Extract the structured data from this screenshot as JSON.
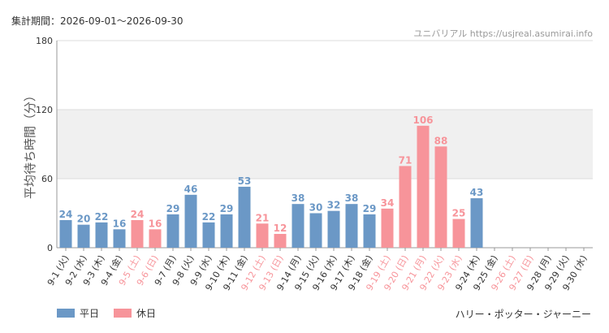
{
  "header": {
    "period": "集計期間：2026-09-01～2026-09-30",
    "site": "ユニバリアル  https://usjreal.asumirai.info"
  },
  "legend": {
    "weekday_label": "平日",
    "holiday_label": "休日",
    "weekday_color": "#6b98c6",
    "holiday_color": "#f7949a"
  },
  "attraction": "ハリー・ポッター・ジャーニー",
  "chart_data": {
    "type": "bar",
    "ylabel": "平均待ち時間（分）",
    "ylim": [
      0,
      180
    ],
    "yticks": [
      0,
      60,
      120,
      180
    ],
    "categories": [
      "9-1 (火)",
      "9-2 (水)",
      "9-3 (木)",
      "9-4 (金)",
      "9-5 (土)",
      "9-6 (日)",
      "9-7 (月)",
      "9-8 (火)",
      "9-9 (水)",
      "9-10 (木)",
      "9-11 (金)",
      "9-12 (土)",
      "9-13 (日)",
      "9-14 (月)",
      "9-15 (火)",
      "9-16 (水)",
      "9-17 (木)",
      "9-18 (金)",
      "9-19 (土)",
      "9-20 (日)",
      "9-21 (月)",
      "9-22 (火)",
      "9-23 (水)",
      "9-24 (木)",
      "9-25 (金)",
      "9-26 (土)",
      "9-27 (日)",
      "9-28 (月)",
      "9-29 (火)",
      "9-30 (水)"
    ],
    "values": [
      24,
      20,
      22,
      16,
      24,
      16,
      29,
      46,
      22,
      29,
      53,
      21,
      12,
      38,
      30,
      32,
      38,
      29,
      34,
      71,
      106,
      88,
      25,
      43,
      null,
      null,
      null,
      null,
      null,
      null
    ],
    "holiday": [
      false,
      false,
      false,
      false,
      true,
      true,
      false,
      false,
      false,
      false,
      false,
      true,
      true,
      false,
      false,
      false,
      false,
      false,
      true,
      true,
      true,
      true,
      true,
      false,
      false,
      true,
      true,
      false,
      false,
      false
    ],
    "colors": {
      "axis_text": "#333333",
      "gridline": "#dddddd",
      "band": "#f0f0f0"
    }
  }
}
